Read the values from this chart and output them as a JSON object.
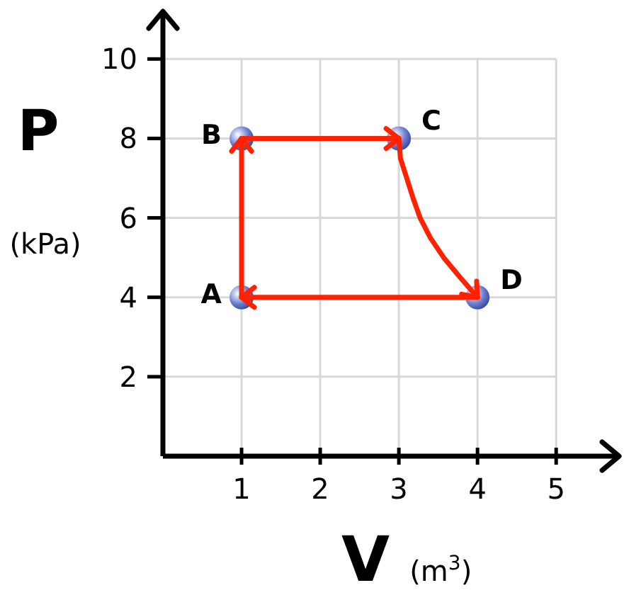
{
  "chart_data": {
    "type": "line",
    "xlabel": "V (m$^{3}$)",
    "ylabel": "P (kPa)",
    "xlim": [
      0,
      5.8
    ],
    "ylim": [
      0,
      11.2
    ],
    "xticks": [
      1,
      2,
      3,
      4,
      5
    ],
    "yticks": [
      2,
      4,
      6,
      8,
      10
    ],
    "grid": true,
    "series": [
      {
        "color": "#ff2200",
        "marker": "none",
        "x": [
          1,
          1
        ],
        "values": [
          4,
          8
        ]
      },
      {
        "color": "#ff2200",
        "marker": "none",
        "x": [
          1,
          3
        ],
        "values": [
          8,
          8
        ]
      },
      {
        "color": "#ff2200",
        "marker": "none",
        "x": [
          3,
          3.02,
          3.1,
          3.18,
          3.27,
          3.4,
          3.57,
          3.78,
          4
        ],
        "values": [
          8,
          7.5,
          7,
          6.5,
          6,
          5.5,
          5,
          4.5,
          4
        ]
      },
      {
        "color": "#ff2200",
        "marker": "none",
        "x": [
          4,
          1
        ],
        "values": [
          4,
          4
        ]
      },
      {
        "type": "scatter",
        "color": "#6f7fd0",
        "marker": "circle",
        "x": [
          1,
          1,
          3,
          4
        ],
        "values": [
          4,
          8,
          8,
          4
        ]
      }
    ],
    "annotations": [
      {
        "text": "A",
        "x": 1,
        "y": 4
      },
      {
        "text": "B",
        "x": 1,
        "y": 8
      },
      {
        "text": "C",
        "x": 3,
        "y": 8
      },
      {
        "text": "D",
        "x": 4,
        "y": 4
      }
    ]
  }
}
